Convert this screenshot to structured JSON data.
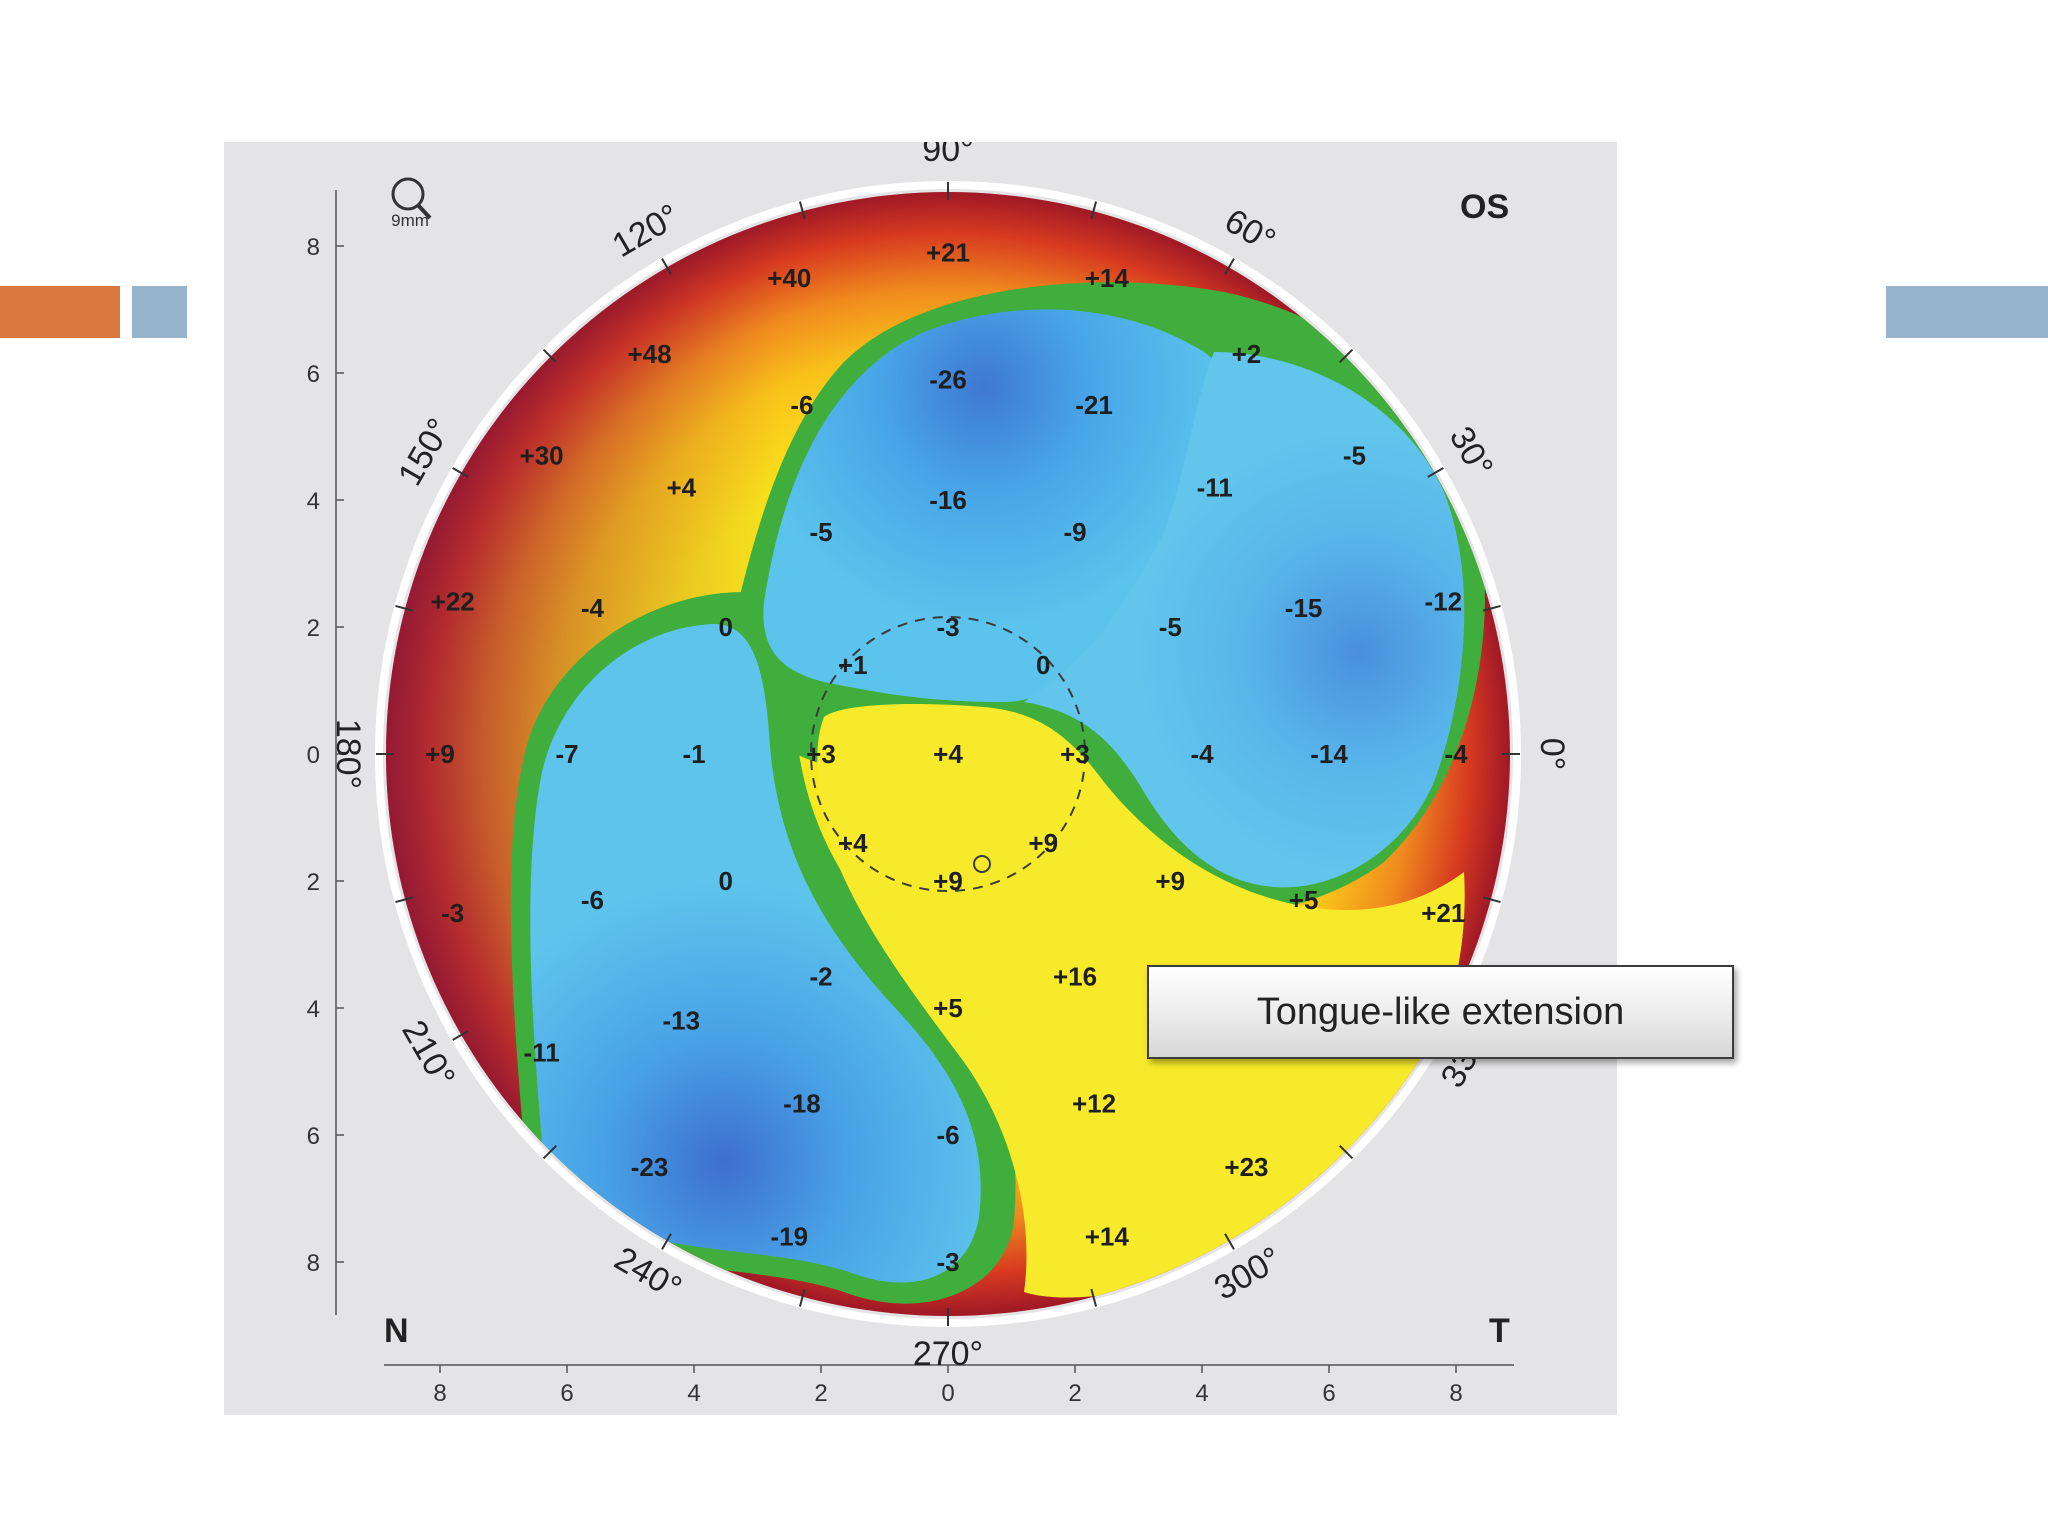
{
  "decor": {
    "accent_orange": "#d9773f",
    "accent_blue": "#97b4cd"
  },
  "map": {
    "eye": "OS",
    "scale_label": "9mm",
    "nasal_label": "N",
    "temporal_label": "T",
    "angle_labels": [
      "90°",
      "60°",
      "30°",
      "0°",
      "330°",
      "300°",
      "270°",
      "240°",
      "210°",
      "180°",
      "150°",
      "120°"
    ],
    "y_axis_ticks": [
      "8",
      "6",
      "4",
      "2",
      "0",
      "2",
      "4",
      "6",
      "8"
    ],
    "x_axis_ticks": [
      "8",
      "6",
      "4",
      "2",
      "0",
      "2",
      "4",
      "6",
      "8"
    ],
    "elevation_values": [
      {
        "value": "+21",
        "x": 0,
        "y": 7.9
      },
      {
        "value": "+40",
        "x": -2.5,
        "y": 7.5
      },
      {
        "value": "+14",
        "x": 2.5,
        "y": 7.5
      },
      {
        "value": "+48",
        "x": -4.7,
        "y": 6.3
      },
      {
        "value": "+2",
        "x": 4.7,
        "y": 6.3
      },
      {
        "value": "-26",
        "x": 0,
        "y": 5.9
      },
      {
        "value": "-6",
        "x": -2.3,
        "y": 5.5
      },
      {
        "value": "-21",
        "x": 2.3,
        "y": 5.5
      },
      {
        "value": "+30",
        "x": -6.4,
        "y": 4.7
      },
      {
        "value": "-5",
        "x": 6.4,
        "y": 4.7
      },
      {
        "value": "+4",
        "x": -4.2,
        "y": 4.2
      },
      {
        "value": "-11",
        "x": 4.2,
        "y": 4.2
      },
      {
        "value": "-16",
        "x": 0,
        "y": 4.0
      },
      {
        "value": "-5",
        "x": -2.0,
        "y": 3.5
      },
      {
        "value": "-9",
        "x": 2.0,
        "y": 3.5
      },
      {
        "value": "+22",
        "x": -7.8,
        "y": 2.4
      },
      {
        "value": "-4",
        "x": -5.6,
        "y": 2.3
      },
      {
        "value": "-15",
        "x": 5.6,
        "y": 2.3
      },
      {
        "value": "-12",
        "x": 7.8,
        "y": 2.4
      },
      {
        "value": "0",
        "x": -3.5,
        "y": 2.0
      },
      {
        "value": "-5",
        "x": 3.5,
        "y": 2.0
      },
      {
        "value": "-3",
        "x": 0,
        "y": 2.0
      },
      {
        "value": "+1",
        "x": -1.5,
        "y": 1.4
      },
      {
        "value": "0",
        "x": 1.5,
        "y": 1.4
      },
      {
        "value": "+9",
        "x": -8.0,
        "y": 0
      },
      {
        "value": "-7",
        "x": -6.0,
        "y": 0
      },
      {
        "value": "-1",
        "x": -4.0,
        "y": 0
      },
      {
        "value": "+3",
        "x": -2.0,
        "y": 0
      },
      {
        "value": "+4",
        "x": 0,
        "y": 0
      },
      {
        "value": "+3",
        "x": 2.0,
        "y": 0
      },
      {
        "value": "-4",
        "x": 4.0,
        "y": 0
      },
      {
        "value": "-14",
        "x": 6.0,
        "y": 0
      },
      {
        "value": "-4",
        "x": 8.0,
        "y": 0
      },
      {
        "value": "+4",
        "x": -1.5,
        "y": -1.4
      },
      {
        "value": "+9",
        "x": 1.5,
        "y": -1.4
      },
      {
        "value": "+9",
        "x": 0,
        "y": -2.0
      },
      {
        "value": "0",
        "x": -3.5,
        "y": -2.0
      },
      {
        "value": "+9",
        "x": 3.5,
        "y": -2.0
      },
      {
        "value": "-3",
        "x": -7.8,
        "y": -2.5
      },
      {
        "value": "-6",
        "x": -5.6,
        "y": -2.3
      },
      {
        "value": "+5",
        "x": 5.6,
        "y": -2.3
      },
      {
        "value": "+21",
        "x": 7.8,
        "y": -2.5
      },
      {
        "value": "-2",
        "x": -2.0,
        "y": -3.5
      },
      {
        "value": "+16",
        "x": 2.0,
        "y": -3.5
      },
      {
        "value": "+5",
        "x": 0,
        "y": -4.0
      },
      {
        "value": "-13",
        "x": -4.2,
        "y": -4.2
      },
      {
        "value": "-11",
        "x": -6.4,
        "y": -4.7
      },
      {
        "value": "-18",
        "x": -2.3,
        "y": -5.5
      },
      {
        "value": "+12",
        "x": 2.3,
        "y": -5.5
      },
      {
        "value": "-6",
        "x": 0,
        "y": -6.0
      },
      {
        "value": "-23",
        "x": -4.7,
        "y": -6.5
      },
      {
        "value": "+23",
        "x": 4.7,
        "y": -6.5
      },
      {
        "value": "-19",
        "x": -2.5,
        "y": -7.6
      },
      {
        "value": "+14",
        "x": 2.5,
        "y": -7.6
      },
      {
        "value": "-3",
        "x": 0,
        "y": -8.0
      }
    ]
  },
  "callout": {
    "text": "Tongue-like extension"
  }
}
